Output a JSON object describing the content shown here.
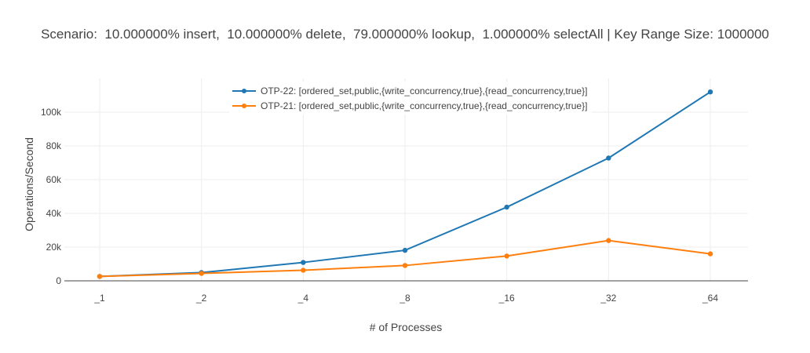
{
  "title": "Scenario:  10.000000% insert,  10.000000% delete,  79.000000% lookup,  1.000000% selectAll | Key Range Size: 1000000",
  "colors": {
    "series_0": "#1f77b4",
    "series_1": "#ff7f0e",
    "grid": "#eeeeee",
    "zeroline": "#444444"
  },
  "legend": [
    {
      "label": "OTP-22: [ordered_set,public,{write_concurrency,true},{read_concurrency,true}]",
      "color": "#1f77b4"
    },
    {
      "label": "OTP-21: [ordered_set,public,{write_concurrency,true},{read_concurrency,true}]",
      "color": "#ff7f0e"
    }
  ],
  "chart_data": {
    "type": "line",
    "title": "Scenario:  10.000000% insert,  10.000000% delete,  79.000000% lookup,  1.000000% selectAll | Key Range Size: 1000000",
    "xlabel": "# of Processes",
    "ylabel": "Operations/Second",
    "categories": [
      "_1",
      "_2",
      "_4",
      "_8",
      "_16",
      "_32",
      "_64"
    ],
    "series": [
      {
        "name": "OTP-22: [ordered_set,public,{write_concurrency,true},{read_concurrency,true}]",
        "color": "#1f77b4",
        "values": [
          2600,
          4900,
          10900,
          18100,
          43700,
          72800,
          112000
        ]
      },
      {
        "name": "OTP-21: [ordered_set,public,{write_concurrency,true},{read_concurrency,true}]",
        "color": "#ff7f0e",
        "values": [
          2600,
          4400,
          6300,
          9100,
          14700,
          23900,
          16000
        ]
      }
    ],
    "ylim": [
      0,
      115000
    ],
    "yticks": [
      0,
      20000,
      40000,
      60000,
      80000,
      100000
    ],
    "ytick_labels": [
      "0",
      "20k",
      "40k",
      "60k",
      "80k",
      "100k"
    ],
    "grid": true,
    "legend_position": "top-center-inside"
  }
}
